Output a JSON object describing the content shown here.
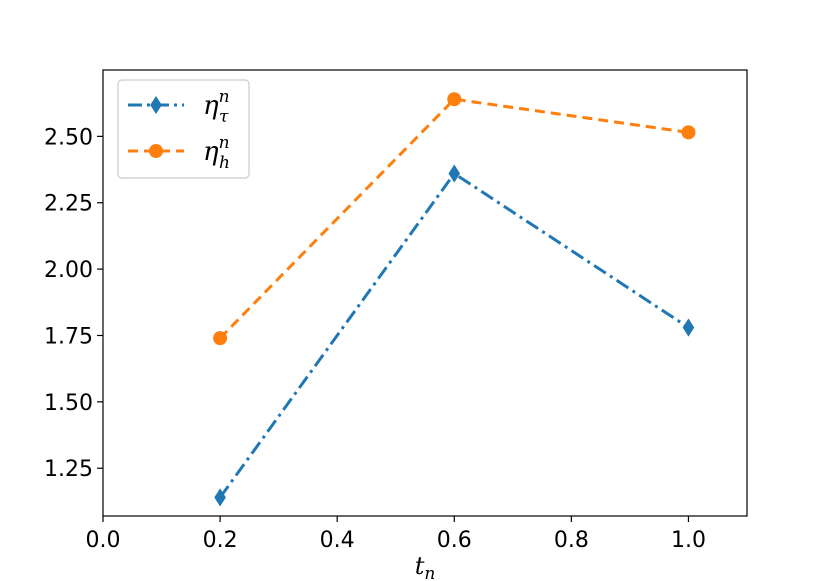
{
  "chart_data": {
    "type": "line",
    "title": "",
    "xlabel": "t",
    "xlabel_sub": "n",
    "ylabel": "",
    "xlim": [
      0.0,
      1.1
    ],
    "ylim": [
      1.07,
      2.75
    ],
    "xticks": [
      0.0,
      0.2,
      0.4,
      0.6,
      0.8,
      1.0
    ],
    "xtick_labels": [
      "0.0",
      "0.2",
      "0.4",
      "0.6",
      "0.8",
      "1.0"
    ],
    "yticks": [
      1.25,
      1.5,
      1.75,
      2.0,
      2.25,
      2.5
    ],
    "ytick_labels": [
      "1.25",
      "1.50",
      "1.75",
      "2.00",
      "2.25",
      "2.50"
    ],
    "grid": false,
    "legend_position": "top-left",
    "series": [
      {
        "name": "η",
        "name_sup": "n",
        "name_sub": "τ",
        "color": "#1f77b4",
        "marker": "diamond",
        "linestyle": "dashdot",
        "x": [
          0.2,
          0.6,
          1.0
        ],
        "y": [
          1.14,
          2.36,
          1.78
        ]
      },
      {
        "name": "η",
        "name_sup": "n",
        "name_sub": "h",
        "color": "#ff7f0e",
        "marker": "circle",
        "linestyle": "dashed",
        "x": [
          0.2,
          0.6,
          1.0
        ],
        "y": [
          1.74,
          2.64,
          2.515
        ]
      }
    ]
  }
}
